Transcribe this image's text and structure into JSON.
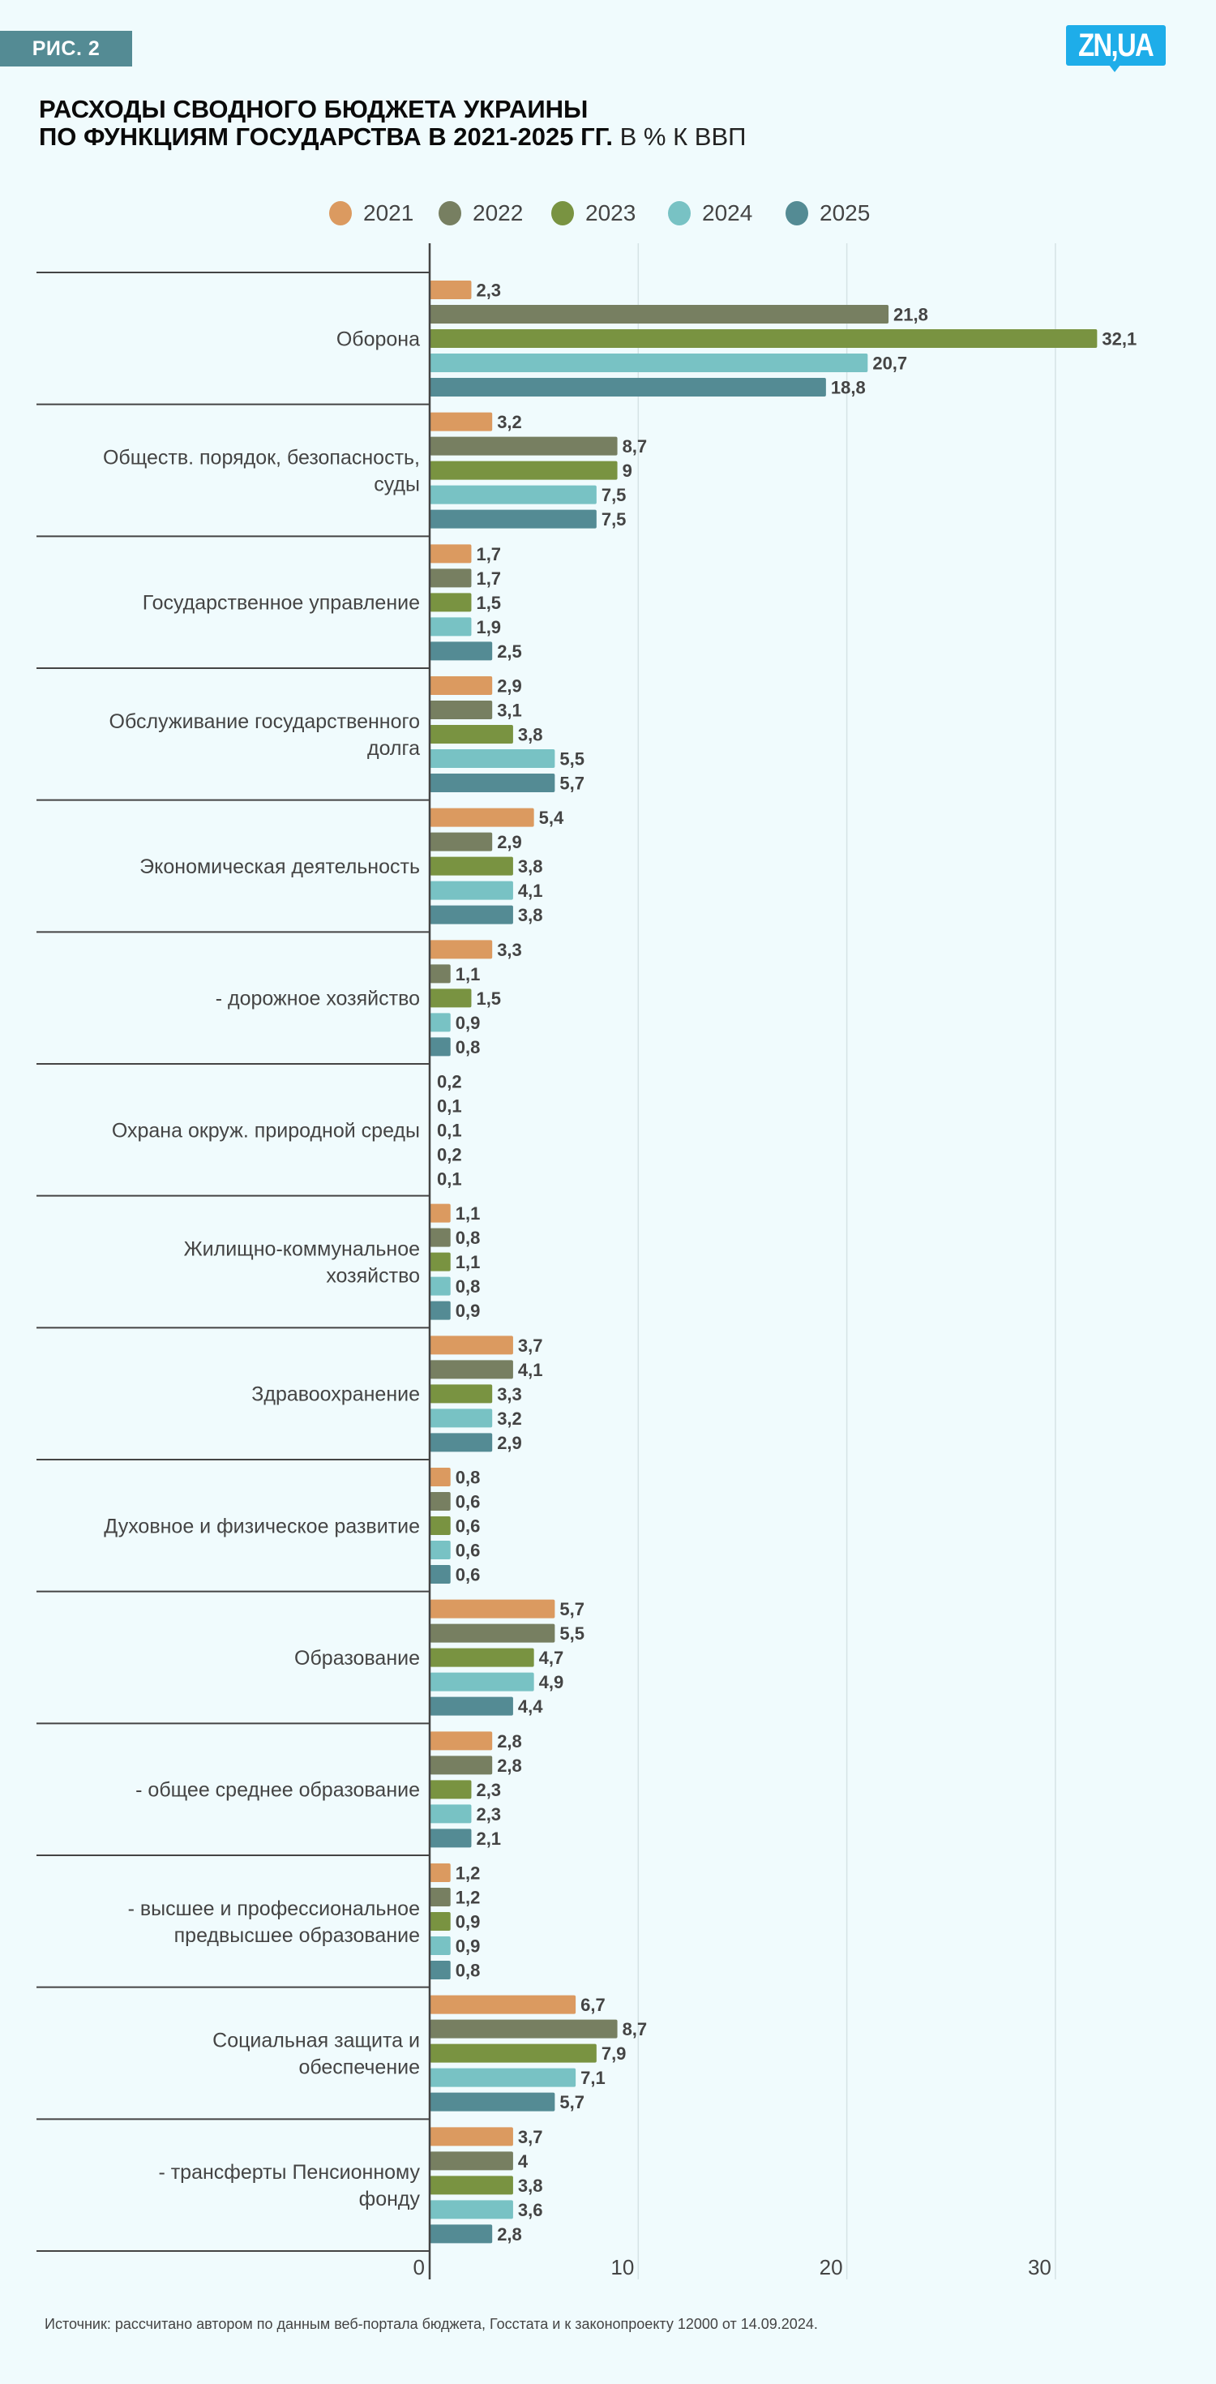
{
  "badge": {
    "label": "РИС. 2"
  },
  "logo": {
    "text": "ZN,UA",
    "color": "#1eade9"
  },
  "title": {
    "line1": "РАСХОДЫ СВОДНОГО БЮДЖЕТА УКРАИНЫ",
    "line2": "ПО ФУНКЦИЯМ ГОСУДАРСТВА В 2021-2025 ГГ.",
    "unit": "В % К ВВП"
  },
  "footer": {
    "source": "Источник: рассчитано автором по данным веб-портала бюджета, Госстата и к законопроекту 12000 от 14.09.2024."
  },
  "chart_data": {
    "type": "bar",
    "orientation": "horizontal",
    "title": "РАСХОДЫ СВОДНОГО БЮДЖЕТА УКРАИНЫ ПО ФУНКЦИЯМ ГОСУДАРСТВА В 2021-2025 ГГ. В % К ВВП",
    "xlabel": "",
    "ylabel": "",
    "xlim": [
      0,
      35
    ],
    "xticks": [
      0,
      10,
      20,
      30
    ],
    "grid": true,
    "legend_position": "top-center",
    "categories": [
      [
        "Оборона"
      ],
      [
        "Обществ. порядок, безопасность,",
        "суды"
      ],
      [
        "Государственное управление"
      ],
      [
        "Обслуживание государственного",
        "долга"
      ],
      [
        "Экономическая деятельность"
      ],
      [
        "- дорожное хозяйство"
      ],
      [
        "Охрана окруж. природной среды"
      ],
      [
        "Жилищно-коммунальное",
        "хозяйство"
      ],
      [
        "Здравоохранение"
      ],
      [
        "Духовное и физическое развитие"
      ],
      [
        "Образование"
      ],
      [
        "- общее среднее образование"
      ],
      [
        "- высшее и профессиональное",
        "предвысшее образование"
      ],
      [
        "Социальная защита и",
        "обеспечение"
      ],
      [
        "- трансферты Пенсионному",
        "фонду"
      ]
    ],
    "series": [
      {
        "name": "2021",
        "color": "#db9a60",
        "values": [
          2.3,
          3.2,
          1.7,
          2.9,
          5.4,
          3.3,
          0.2,
          1.1,
          3.7,
          0.8,
          5.7,
          2.8,
          1.2,
          6.7,
          3.7
        ]
      },
      {
        "name": "2022",
        "color": "#777f61",
        "values": [
          21.8,
          8.7,
          1.7,
          3.1,
          2.9,
          1.1,
          0.1,
          0.8,
          4.1,
          0.6,
          5.5,
          2.8,
          1.2,
          8.7,
          4
        ]
      },
      {
        "name": "2023",
        "color": "#799341",
        "values": [
          32.1,
          9,
          1.5,
          3.8,
          3.8,
          1.5,
          0.1,
          1.1,
          3.3,
          0.6,
          4.7,
          2.3,
          0.9,
          7.9,
          3.8
        ]
      },
      {
        "name": "2024",
        "color": "#78c2c4",
        "values": [
          20.7,
          7.5,
          1.9,
          5.5,
          4.1,
          0.9,
          0.2,
          0.8,
          3.2,
          0.6,
          4.9,
          2.3,
          0.9,
          7.1,
          3.6
        ]
      },
      {
        "name": "2025",
        "color": "#548b94",
        "values": [
          18.8,
          7.5,
          2.5,
          5.7,
          3.8,
          0.8,
          0.1,
          0.9,
          2.9,
          0.6,
          4.4,
          2.1,
          0.8,
          5.7,
          2.8
        ]
      }
    ]
  }
}
